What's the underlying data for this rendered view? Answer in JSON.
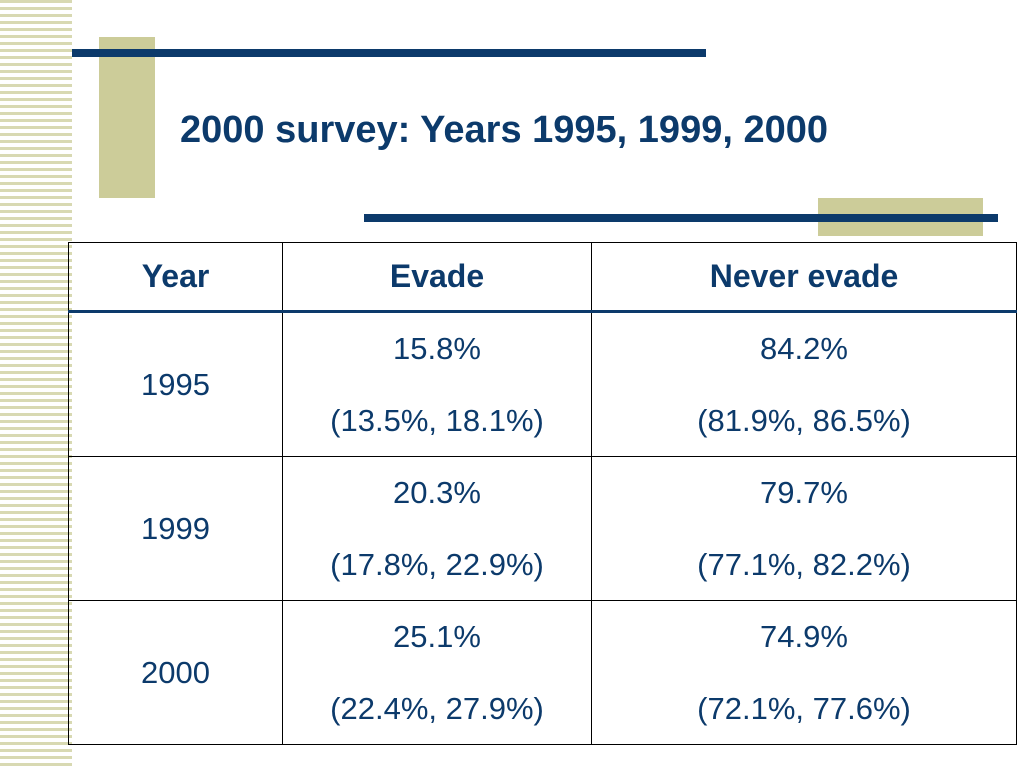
{
  "slide": {
    "title": "2000 survey: Years 1995, 1999, 2000"
  },
  "table": {
    "headers": [
      "Year",
      "Evade",
      "Never evade"
    ],
    "rows": [
      {
        "year": "1995",
        "evade": {
          "value": "15.8%",
          "ci": "(13.5%, 18.1%)"
        },
        "never_evade": {
          "value": "84.2%",
          "ci": "(81.9%, 86.5%)"
        }
      },
      {
        "year": "1999",
        "evade": {
          "value": "20.3%",
          "ci": "(17.8%, 22.9%)"
        },
        "never_evade": {
          "value": "79.7%",
          "ci": "(77.1%, 82.2%)"
        }
      },
      {
        "year": "2000",
        "evade": {
          "value": "25.1%",
          "ci": "(22.4%, 27.9%)"
        },
        "never_evade": {
          "value": "74.9%",
          "ci": "(72.1%, 77.6%)"
        }
      }
    ]
  },
  "colors": {
    "text": "#0c3a6b",
    "accent_bar": "#0c3a6b",
    "accent_block": "#cccc99",
    "stripe": "#d8d9b2"
  }
}
